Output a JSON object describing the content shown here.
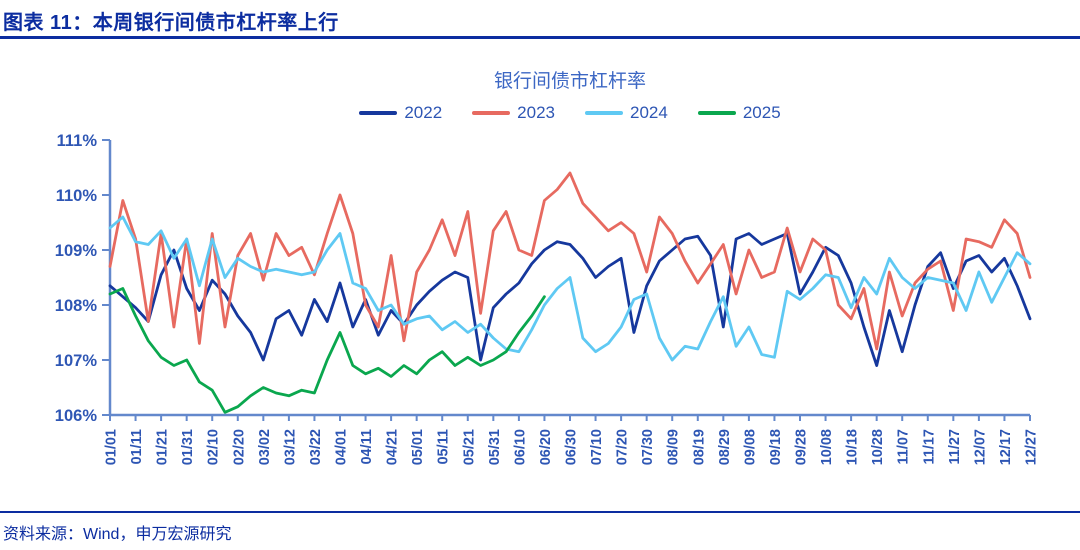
{
  "page": {
    "figure_label": "图表 11：本周银行间债市杠杆率上行",
    "source": "资料来源：Wind，申万宏源研究"
  },
  "colors": {
    "header_blue": "#0c2da0",
    "title_blue": "#3c67c4",
    "label_blue": "#2e56b4",
    "axis_blue": "#6388cc"
  },
  "chart_data": {
    "type": "line",
    "title": "银行间债市杠杆率",
    "y_unit": "%",
    "y_min": 106,
    "y_max": 111,
    "y_tick_labels": [
      "111%",
      "110%",
      "109%",
      "108%",
      "107%",
      "106%"
    ],
    "x_tick_labels": [
      "01/01",
      "01/11",
      "01/21",
      "01/31",
      "02/10",
      "02/20",
      "03/02",
      "03/12",
      "03/22",
      "04/01",
      "04/11",
      "04/21",
      "05/01",
      "05/11",
      "05/21",
      "05/31",
      "06/10",
      "06/20",
      "06/30",
      "07/10",
      "07/20",
      "07/30",
      "08/09",
      "08/19",
      "08/29",
      "09/08",
      "09/18",
      "09/28",
      "10/08",
      "10/18",
      "10/28",
      "11/07",
      "11/17",
      "11/27",
      "12/07",
      "12/17",
      "12/27"
    ],
    "x_step_days": 5,
    "total_days": 360,
    "grid": false,
    "legend_position": "top",
    "series": [
      {
        "name": "2022",
        "color": "#16389d",
        "values": [
          108.35,
          108.15,
          107.95,
          107.7,
          108.55,
          109.0,
          108.3,
          107.9,
          108.45,
          108.2,
          107.8,
          107.5,
          107.0,
          107.75,
          107.9,
          107.45,
          108.1,
          107.7,
          108.4,
          107.6,
          108.1,
          107.45,
          107.9,
          107.65,
          108.0,
          108.25,
          108.45,
          108.6,
          108.5,
          107.0,
          107.95,
          108.2,
          108.4,
          108.75,
          109.0,
          109.15,
          109.1,
          108.85,
          108.5,
          108.7,
          108.85,
          107.5,
          108.35,
          108.8,
          109.0,
          109.2,
          109.25,
          108.9,
          107.6,
          109.2,
          109.3,
          109.1,
          109.2,
          109.3,
          108.2,
          108.6,
          109.05,
          108.9,
          108.4,
          107.6,
          106.9,
          107.9,
          107.15,
          108.0,
          108.7,
          108.95,
          108.3,
          108.8,
          108.9,
          108.6,
          108.85,
          108.35,
          107.75
        ]
      },
      {
        "name": "2023",
        "color": "#e76a60",
        "values": [
          108.7,
          109.9,
          109.2,
          107.7,
          109.3,
          107.6,
          109.2,
          107.3,
          109.3,
          107.6,
          108.9,
          109.3,
          108.45,
          109.3,
          108.9,
          109.05,
          108.55,
          109.3,
          110.0,
          109.3,
          108.0,
          107.6,
          108.9,
          107.35,
          108.6,
          109.0,
          109.55,
          108.9,
          109.7,
          107.85,
          109.35,
          109.7,
          109.0,
          108.9,
          109.9,
          110.1,
          110.4,
          109.85,
          109.6,
          109.35,
          109.5,
          109.3,
          108.6,
          109.6,
          109.3,
          108.8,
          108.4,
          108.75,
          109.1,
          108.2,
          109.0,
          108.5,
          108.6,
          109.4,
          108.6,
          109.2,
          109.0,
          108.0,
          107.75,
          108.3,
          107.2,
          108.6,
          107.8,
          108.4,
          108.65,
          108.8,
          107.9,
          109.2,
          109.15,
          109.05,
          109.55,
          109.3,
          108.5
        ]
      },
      {
        "name": "2024",
        "color": "#5fc9f3",
        "values": [
          109.4,
          109.6,
          109.15,
          109.1,
          109.35,
          108.85,
          109.2,
          108.35,
          109.2,
          108.5,
          108.85,
          108.7,
          108.6,
          108.65,
          108.6,
          108.55,
          108.6,
          109.0,
          109.3,
          108.4,
          108.3,
          107.9,
          108.0,
          107.65,
          107.75,
          107.8,
          107.55,
          107.7,
          107.5,
          107.65,
          107.4,
          107.2,
          107.15,
          107.55,
          108.0,
          108.3,
          108.5,
          107.4,
          107.15,
          107.3,
          107.6,
          108.1,
          108.2,
          107.4,
          107.0,
          107.25,
          107.2,
          107.7,
          108.15,
          107.25,
          107.6,
          107.1,
          107.05,
          108.25,
          108.1,
          108.3,
          108.55,
          108.5,
          107.95,
          108.5,
          108.2,
          108.85,
          108.5,
          108.3,
          108.5,
          108.45,
          108.4,
          107.9,
          108.6,
          108.05,
          108.5,
          108.95,
          108.75
        ]
      },
      {
        "name": "2025",
        "color": "#0aa74e",
        "values": [
          108.2,
          108.3,
          107.8,
          107.35,
          107.05,
          106.9,
          107.0,
          106.6,
          106.45,
          106.05,
          106.15,
          106.35,
          106.5,
          106.4,
          106.35,
          106.45,
          106.4,
          107.0,
          107.5,
          106.9,
          106.75,
          106.85,
          106.7,
          106.9,
          106.75,
          107.0,
          107.15,
          106.9,
          107.05,
          106.9,
          107.0,
          107.15,
          107.5,
          107.8,
          108.15
        ]
      }
    ]
  }
}
